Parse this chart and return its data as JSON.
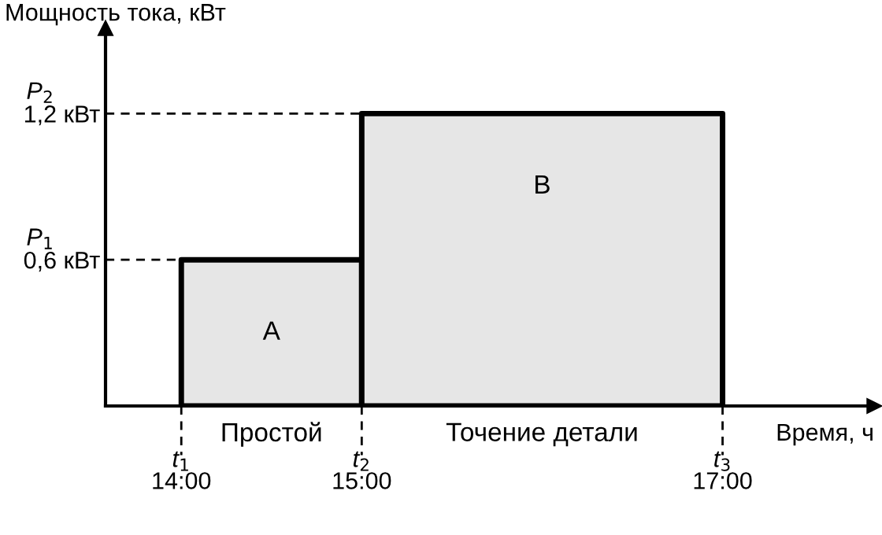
{
  "chart_data": {
    "type": "area",
    "ylabel": "Мощность тока, кВт",
    "xlabel": "Время, ч",
    "series": [
      {
        "color": "#e6e6e6",
        "x": [
          14,
          15
        ],
        "values": [
          0.6,
          0.6
        ]
      },
      {
        "color": "#e6e6e6",
        "x": [
          15,
          17
        ],
        "values": [
          1.2,
          1.2
        ]
      }
    ],
    "xlim": [
      13.58,
      17.84
    ],
    "ylim": [
      0,
      1.55
    ],
    "xticks": [
      {
        "value": 14,
        "label": "14:00"
      },
      {
        "value": 15,
        "label": "15:00"
      },
      {
        "value": 17,
        "label": "17:00"
      }
    ],
    "yticks": [
      {
        "value": 0.6,
        "label": "0,6 кВт"
      },
      {
        "value": 1.2,
        "label": "1,2 кВт"
      }
    ],
    "annotations": [
      "A",
      "B",
      "Простой",
      "Точение детали",
      "t$_{1}$",
      "t$_{2}$",
      "t$_{3}$",
      "P$_{1}$",
      "P$_{2}$"
    ],
    "grid": false,
    "legend": false
  }
}
